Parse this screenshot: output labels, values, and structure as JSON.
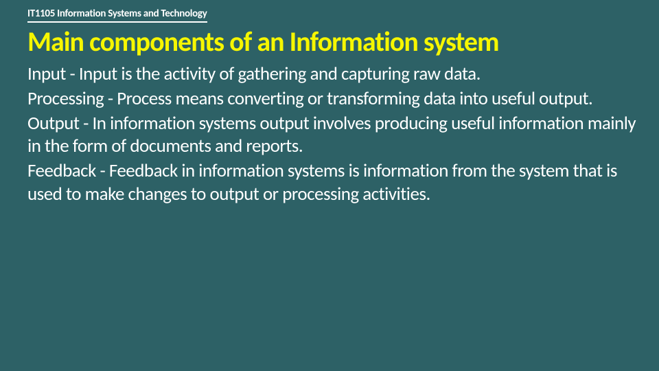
{
  "colors": {
    "background": "#2d6166",
    "header_text": "#ffffff",
    "header_underline": "#ffffff",
    "title_text": "#f6f600",
    "body_text": "#ffffff"
  },
  "typography": {
    "header_fontsize": 15,
    "header_fontweight": "bold",
    "title_fontsize": 40,
    "title_fontweight": "bold",
    "body_fontsize": 27,
    "body_fontweight": 300,
    "font_family": "Segoe UI, Calibri, Arial, sans-serif"
  },
  "header": {
    "course_label": "IT1105 Information Systems and Technology"
  },
  "title": "Main components of an Information system",
  "paragraphs": [
    " Input - Input is the activity of gathering and capturing raw data.",
    " Processing - Process means converting or transforming data into useful output.",
    " Output - In information systems output involves producing useful information mainly in the form of documents and reports.",
    " Feedback - Feedback in information systems is information from the system that is used to make changes to output or processing activities."
  ]
}
